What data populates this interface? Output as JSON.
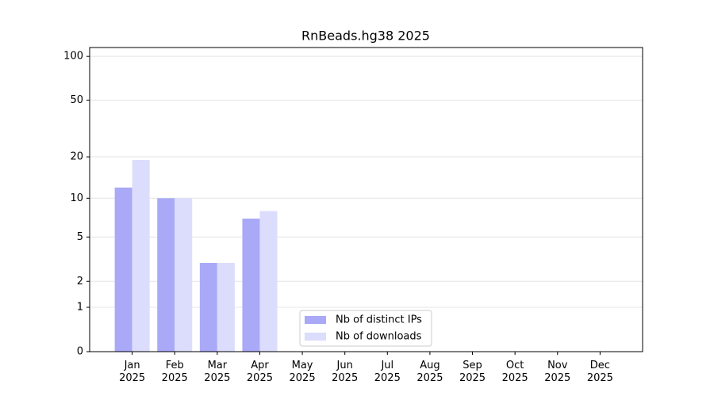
{
  "chart_data": {
    "type": "bar",
    "title": "RnBeads.hg38 2025",
    "categories": [
      "Jan\n2025",
      "Feb\n2025",
      "Mar\n2025",
      "Apr\n2025",
      "May\n2025",
      "Jun\n2025",
      "Jul\n2025",
      "Aug\n2025",
      "Sep\n2025",
      "Oct\n2025",
      "Nov\n2025",
      "Dec\n2025"
    ],
    "series": [
      {
        "name": "Nb of distinct IPs",
        "color": "#a9a9f8",
        "values": [
          12,
          10,
          3,
          7,
          0,
          0,
          0,
          0,
          0,
          0,
          0,
          0
        ]
      },
      {
        "name": "Nb of downloads",
        "color": "#dcdcfc",
        "values": [
          19,
          10,
          3,
          8,
          0,
          0,
          0,
          0,
          0,
          0,
          0,
          0
        ]
      }
    ],
    "yscale": "log1p",
    "ylim": [
      0,
      115
    ],
    "yticks": [
      0,
      1,
      2,
      5,
      10,
      20,
      50,
      100
    ],
    "grid": true,
    "legend": "lower center"
  }
}
